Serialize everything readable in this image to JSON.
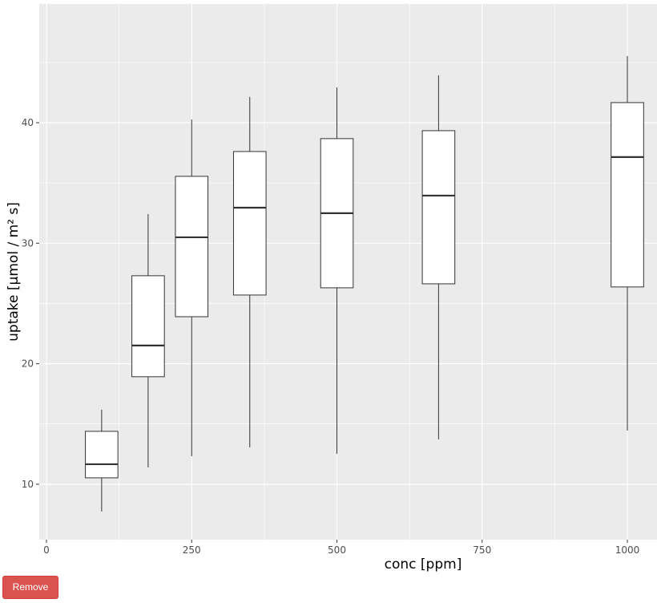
{
  "chart_data": {
    "type": "boxplot",
    "xlabel": "conc [ppm]",
    "ylabel": "uptake [µmol / m² s]",
    "xlim": [
      -12.4,
      1051
    ],
    "ylim": [
      5.4,
      49.85
    ],
    "xticks": [
      0,
      250,
      500,
      750,
      1000
    ],
    "yticks": [
      10,
      20,
      30,
      40
    ],
    "grid": true,
    "box_width": 56,
    "colors": {
      "panel": "#ebebeb",
      "grid": "#ffffff",
      "box_fill": "#ffffff",
      "box_line": "#333333",
      "text": "#4d4d4d"
    },
    "boxes": [
      {
        "x": 95,
        "lower": 7.74,
        "q1": 10.53,
        "median": 11.66,
        "q3": 14.39,
        "upper": 16.19
      },
      {
        "x": 175,
        "lower": 11.4,
        "q1": 18.92,
        "median": 21.51,
        "q3": 27.3,
        "upper": 32.42
      },
      {
        "x": 250,
        "lower": 12.33,
        "q1": 23.9,
        "median": 30.49,
        "q3": 35.55,
        "upper": 40.27
      },
      {
        "x": 350,
        "lower": 13.06,
        "q1": 25.7,
        "median": 32.95,
        "q3": 37.61,
        "upper": 42.14
      },
      {
        "x": 500,
        "lower": 12.53,
        "q1": 26.3,
        "median": 32.49,
        "q3": 38.68,
        "upper": 42.93
      },
      {
        "x": 675,
        "lower": 13.73,
        "q1": 26.63,
        "median": 33.95,
        "q3": 39.34,
        "upper": 43.93
      },
      {
        "x": 1000,
        "lower": 14.46,
        "q1": 26.37,
        "median": 37.15,
        "q3": 41.67,
        "upper": 45.53
      }
    ]
  },
  "controls": {
    "remove_label": "Remove",
    "remove_color": "#d9534f"
  }
}
